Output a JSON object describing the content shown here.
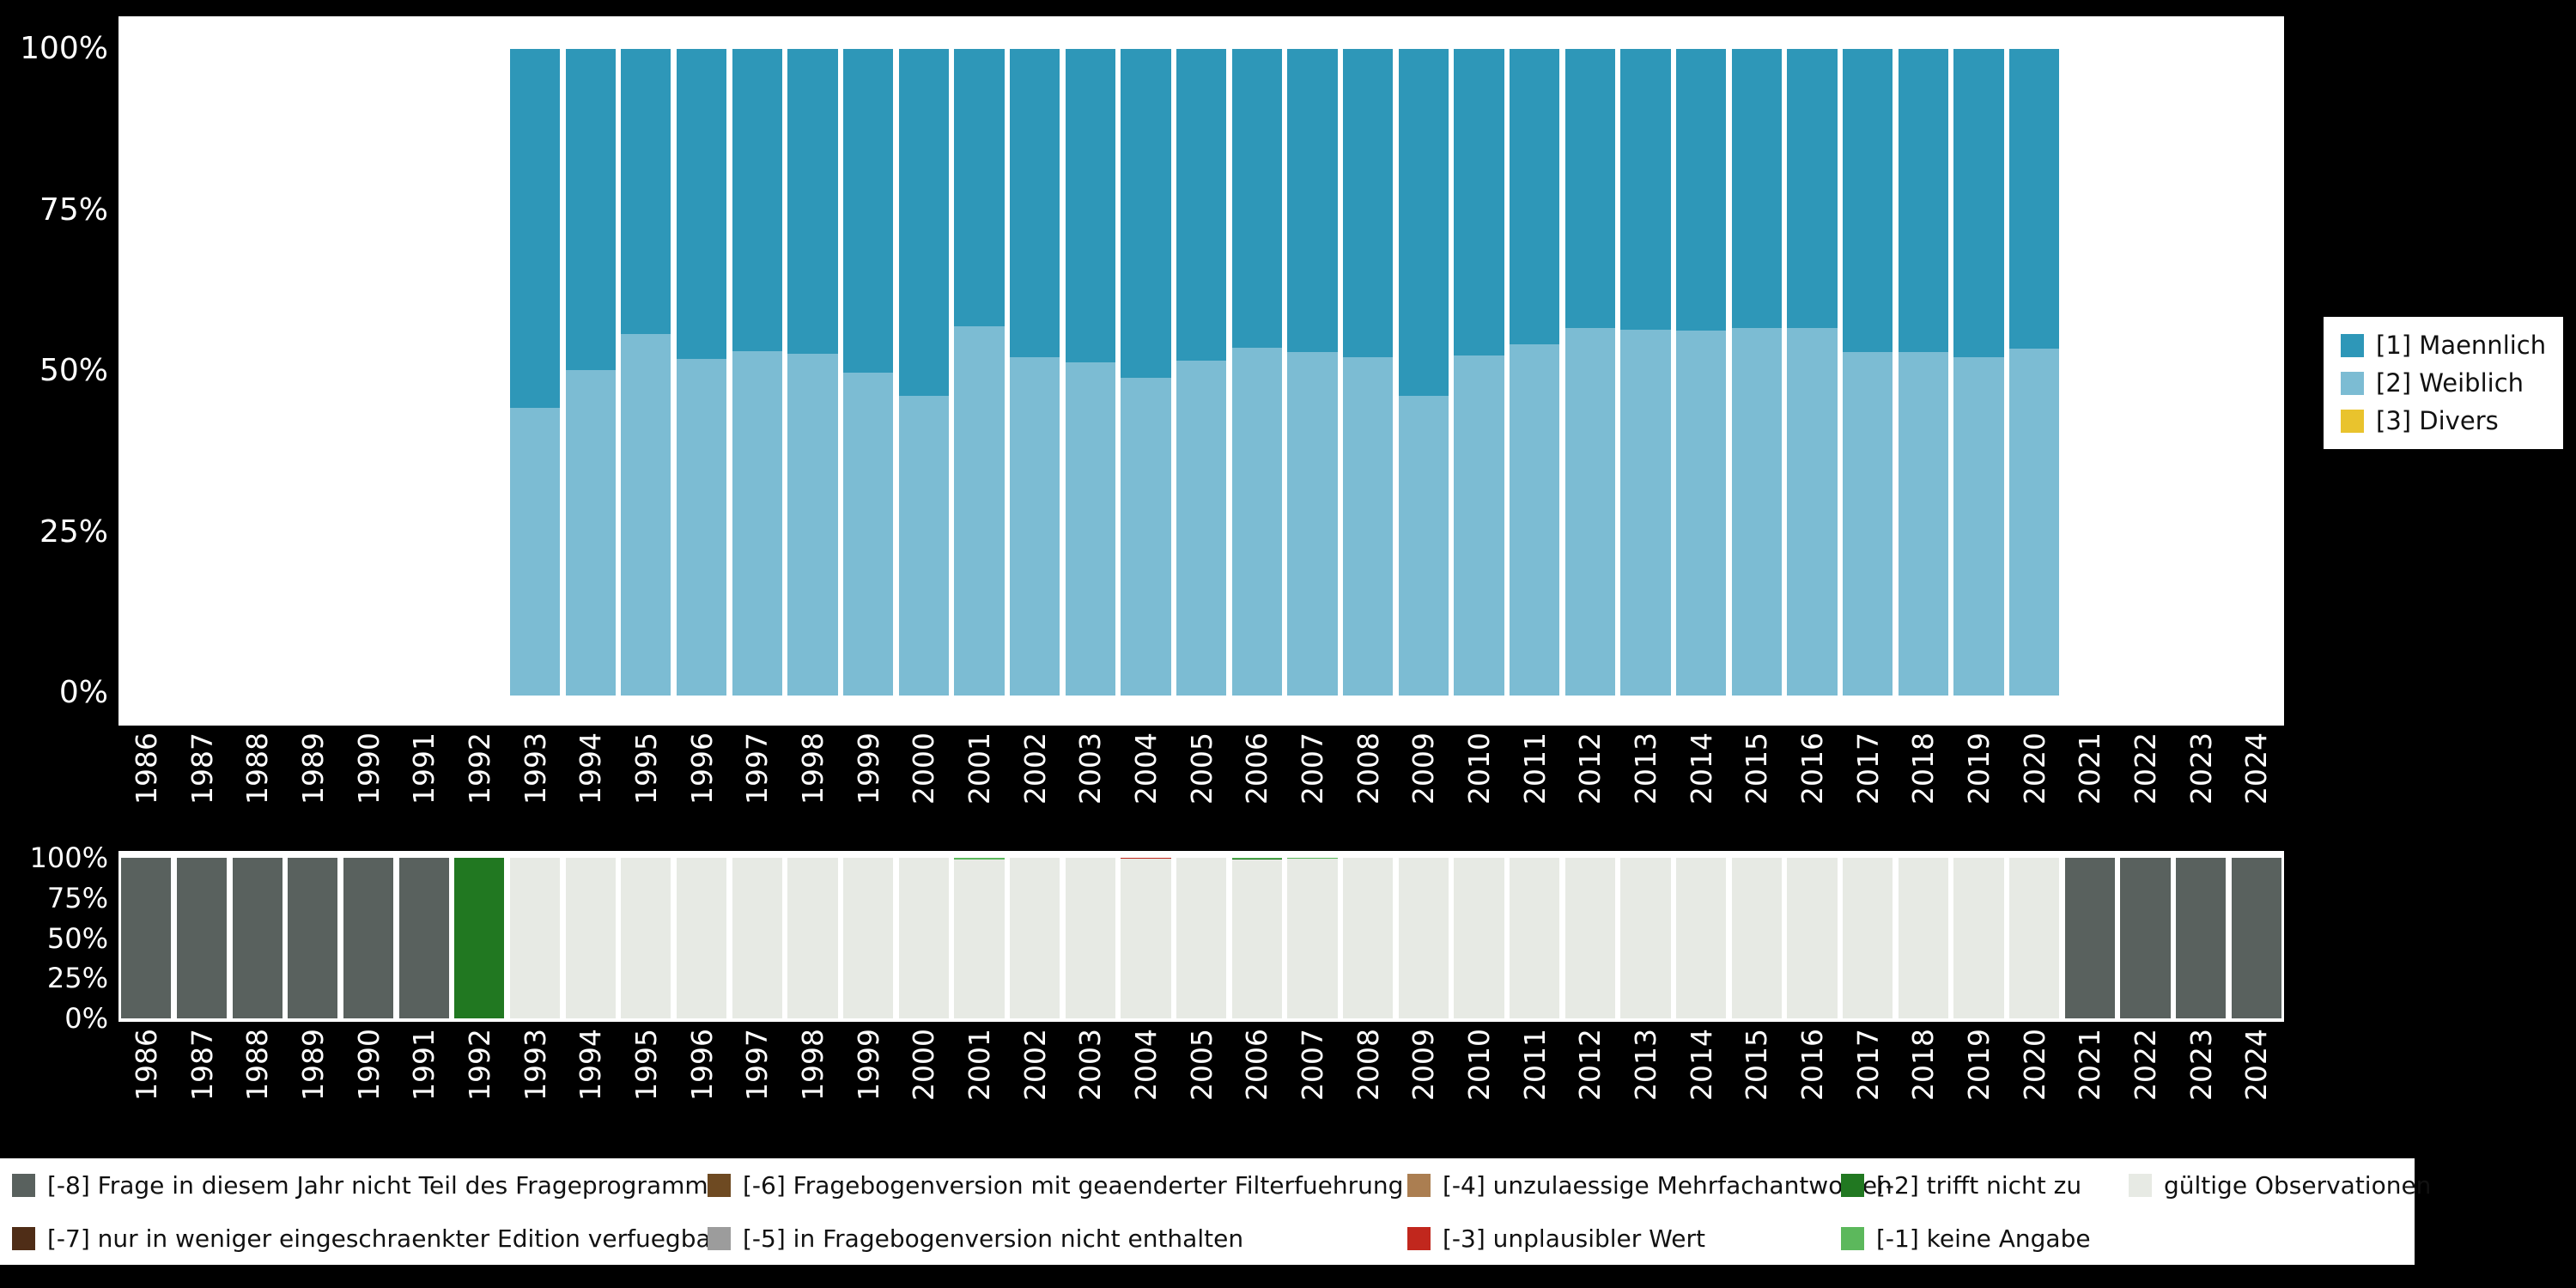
{
  "colors": {
    "background": "#000000",
    "panel": "#ffffff",
    "male": "#2e97b8",
    "female": "#7cbcd3",
    "divers": "#e9c32d",
    "miss8": "#59615e",
    "miss7": "#4f2d17",
    "miss6": "#6e4a22",
    "miss5": "#9c9c9c",
    "miss4": "#ab7e51",
    "miss3": "#c1271d",
    "miss2": "#217821",
    "miss1": "#5cb85c",
    "valid": "#e7eae4"
  },
  "axes": {
    "years": [
      "1986",
      "1987",
      "1988",
      "1989",
      "1990",
      "1991",
      "1992",
      "1993",
      "1994",
      "1995",
      "1996",
      "1997",
      "1998",
      "1999",
      "2000",
      "2001",
      "2002",
      "2003",
      "2004",
      "2005",
      "2006",
      "2007",
      "2008",
      "2009",
      "2010",
      "2011",
      "2012",
      "2013",
      "2014",
      "2015",
      "2016",
      "2017",
      "2018",
      "2019",
      "2020",
      "2021",
      "2022",
      "2023",
      "2024"
    ],
    "yticks": [
      "100%",
      "75%",
      "50%",
      "25%",
      "0%"
    ]
  },
  "top_legend": [
    {
      "label": "[1] Maennlich",
      "color_key": "male"
    },
    {
      "label": "[2] Weiblich",
      "color_key": "female"
    },
    {
      "label": "[3] Divers",
      "color_key": "divers"
    }
  ],
  "bottom_legend": [
    {
      "label": "[-8] Frage in diesem Jahr nicht Teil des Frageprogramms",
      "color_key": "miss8"
    },
    {
      "label": "[-7] nur in weniger eingeschraenkter Edition verfuegbar",
      "color_key": "miss7"
    },
    {
      "label": "[-6] Fragebogenversion mit geaenderter Filterfuehrung",
      "color_key": "miss6"
    },
    {
      "label": "[-5] in Fragebogenversion nicht enthalten",
      "color_key": "miss5"
    },
    {
      "label": "[-4] unzulaessige Mehrfachantworten",
      "color_key": "miss4"
    },
    {
      "label": "[-3] unplausibler Wert",
      "color_key": "miss3"
    },
    {
      "label": "[-2] trifft nicht zu",
      "color_key": "miss2"
    },
    {
      "label": "[-1] keine Angabe",
      "color_key": "miss1"
    },
    {
      "label": "gültige Observationen",
      "color_key": "valid"
    }
  ],
  "chart_data": [
    {
      "type": "bar",
      "stacked": true,
      "title": "",
      "xlabel": "",
      "ylabel": "",
      "ylim": [
        0,
        100
      ],
      "yticks": [
        "0%",
        "25%",
        "50%",
        "75%",
        "100%"
      ],
      "x_axis_years": [
        "1986",
        "1987",
        "1988",
        "1989",
        "1990",
        "1991",
        "1992",
        "1993",
        "1994",
        "1995",
        "1996",
        "1997",
        "1998",
        "1999",
        "2000",
        "2001",
        "2002",
        "2003",
        "2004",
        "2005",
        "2006",
        "2007",
        "2008",
        "2009",
        "2010",
        "2011",
        "2012",
        "2013",
        "2014",
        "2015",
        "2016",
        "2017",
        "2018",
        "2019",
        "2020",
        "2021",
        "2022",
        "2023",
        "2024"
      ],
      "categories": [
        1993,
        1994,
        1995,
        1996,
        1997,
        1998,
        1999,
        2000,
        2001,
        2002,
        2003,
        2004,
        2005,
        2006,
        2007,
        2008,
        2009,
        2010,
        2011,
        2012,
        2013,
        2014,
        2015,
        2016,
        2017,
        2018,
        2019,
        2020
      ],
      "series": [
        {
          "name": "[2] Weiblich",
          "color_key": "female",
          "values": [
            44.5,
            50.3,
            55.9,
            52.0,
            53.3,
            52.8,
            50.0,
            46.4,
            57.1,
            52.3,
            51.5,
            49.2,
            51.8,
            53.8,
            53.1,
            52.3,
            46.4,
            52.6,
            54.3,
            56.9,
            56.6,
            56.4,
            56.9,
            56.9,
            53.1,
            53.1,
            52.3,
            53.6
          ]
        },
        {
          "name": "[1] Maennlich",
          "color_key": "male",
          "values": [
            55.5,
            49.7,
            44.1,
            48.0,
            46.7,
            47.2,
            50.0,
            53.6,
            42.9,
            47.7,
            48.5,
            50.8,
            48.2,
            46.2,
            46.9,
            47.7,
            53.6,
            47.4,
            45.7,
            43.1,
            43.4,
            43.6,
            43.1,
            43.1,
            46.9,
            46.9,
            47.7,
            46.4
          ]
        },
        {
          "name": "[3] Divers",
          "color_key": "divers",
          "values": [
            0,
            0,
            0,
            0,
            0,
            0,
            0,
            0,
            0,
            0,
            0,
            0,
            0,
            0,
            0,
            0,
            0,
            0,
            0,
            0,
            0,
            0,
            0,
            0,
            0,
            0,
            0,
            0
          ]
        }
      ],
      "legend_position": "right"
    },
    {
      "type": "bar",
      "stacked": true,
      "title": "",
      "ylim": [
        0,
        100
      ],
      "yticks": [
        "0%",
        "25%",
        "50%",
        "75%",
        "100%"
      ],
      "categories": [
        1986,
        1987,
        1988,
        1989,
        1990,
        1991,
        1992,
        1993,
        1994,
        1995,
        1996,
        1997,
        1998,
        1999,
        2000,
        2001,
        2002,
        2003,
        2004,
        2005,
        2006,
        2007,
        2008,
        2009,
        2010,
        2011,
        2012,
        2013,
        2014,
        2015,
        2016,
        2017,
        2018,
        2019,
        2020,
        2021,
        2022,
        2023,
        2024
      ],
      "bars": [
        [
          [
            "miss8",
            100
          ]
        ],
        [
          [
            "miss8",
            100
          ]
        ],
        [
          [
            "miss8",
            100
          ]
        ],
        [
          [
            "miss8",
            100
          ]
        ],
        [
          [
            "miss8",
            100
          ]
        ],
        [
          [
            "miss8",
            100
          ]
        ],
        [
          [
            "miss2",
            100
          ]
        ],
        [
          [
            "valid",
            100
          ]
        ],
        [
          [
            "valid",
            100
          ]
        ],
        [
          [
            "valid",
            100
          ]
        ],
        [
          [
            "valid",
            100
          ]
        ],
        [
          [
            "valid",
            100
          ]
        ],
        [
          [
            "valid",
            100
          ]
        ],
        [
          [
            "valid",
            100
          ]
        ],
        [
          [
            "valid",
            100
          ]
        ],
        [
          [
            "valid",
            99.2
          ],
          [
            "miss1",
            0.8
          ]
        ],
        [
          [
            "valid",
            100
          ]
        ],
        [
          [
            "valid",
            100
          ]
        ],
        [
          [
            "valid",
            99.5
          ],
          [
            "miss3",
            0.5
          ]
        ],
        [
          [
            "valid",
            100
          ]
        ],
        [
          [
            "valid",
            99.0
          ],
          [
            "miss2",
            0.6
          ],
          [
            "miss1",
            0.4
          ]
        ],
        [
          [
            "valid",
            99.5
          ],
          [
            "miss1",
            0.5
          ]
        ],
        [
          [
            "valid",
            100
          ]
        ],
        [
          [
            "valid",
            100
          ]
        ],
        [
          [
            "valid",
            100
          ]
        ],
        [
          [
            "valid",
            100
          ]
        ],
        [
          [
            "valid",
            100
          ]
        ],
        [
          [
            "valid",
            100
          ]
        ],
        [
          [
            "valid",
            100
          ]
        ],
        [
          [
            "valid",
            100
          ]
        ],
        [
          [
            "valid",
            100
          ]
        ],
        [
          [
            "valid",
            100
          ]
        ],
        [
          [
            "valid",
            100
          ]
        ],
        [
          [
            "valid",
            100
          ]
        ],
        [
          [
            "valid",
            100
          ]
        ],
        [
          [
            "miss8",
            100
          ]
        ],
        [
          [
            "miss8",
            100
          ]
        ],
        [
          [
            "miss8",
            100
          ]
        ],
        [
          [
            "miss8",
            100
          ]
        ]
      ],
      "legend_position": "bottom"
    }
  ]
}
